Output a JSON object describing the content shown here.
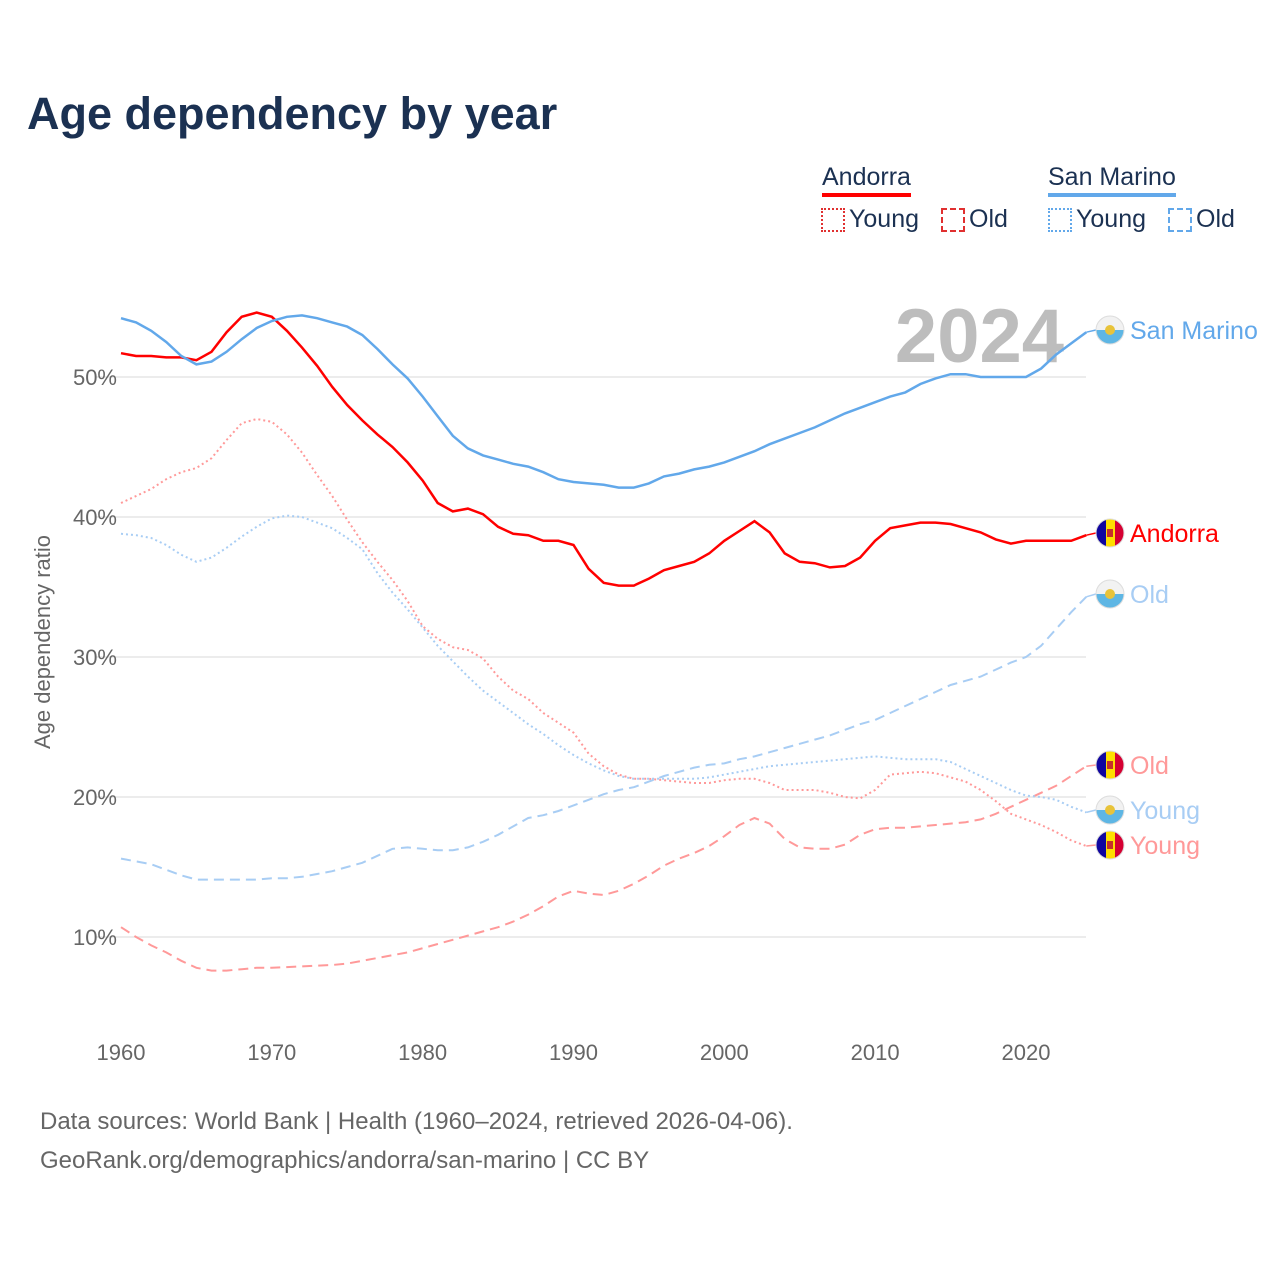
{
  "title": "Age dependency by year",
  "footer": {
    "line1": "Data sources: World Bank | Health (1960–2024, retrieved 2026-04-06).",
    "line2": "GeoRank.org/demographics/andorra/san-marino | CC BY"
  },
  "legend": {
    "andorra": {
      "label": "Andorra",
      "young": "Young",
      "old": "Old",
      "color": "#ff0000",
      "light": "#ff9999"
    },
    "san_marino": {
      "label": "San Marino",
      "young": "Young",
      "old": "Old",
      "color": "#62a8ea",
      "light": "#a8cdf4"
    }
  },
  "chart_data": {
    "type": "line",
    "title": "Age dependency by year",
    "ylabel": "Age dependency ratio",
    "xlabel": "",
    "year_watermark": "2024",
    "xlim": [
      1960,
      2024
    ],
    "ylim": [
      4,
      56
    ],
    "x_ticks": [
      "1960",
      "1970",
      "1980",
      "1990",
      "2000",
      "2010",
      "2020"
    ],
    "y_ticks": [
      {
        "v": 10,
        "label": "10%"
      },
      {
        "v": 20,
        "label": "20%"
      },
      {
        "v": 30,
        "label": "30%"
      },
      {
        "v": 40,
        "label": "40%"
      },
      {
        "v": 50,
        "label": "50%"
      }
    ],
    "x_start": 1960,
    "series": [
      {
        "name": "Andorra",
        "end_label": "Andorra",
        "country": "andorra",
        "style": "solid",
        "color": "#ff0000",
        "values": [
          51.7,
          51.5,
          51.5,
          51.4,
          51.4,
          51.2,
          51.8,
          53.2,
          54.3,
          54.6,
          54.3,
          53.3,
          52.1,
          50.8,
          49.3,
          48.0,
          46.9,
          45.9,
          45.0,
          43.9,
          42.6,
          41.0,
          40.4,
          40.6,
          40.2,
          39.3,
          38.8,
          38.7,
          38.3,
          38.3,
          38.0,
          36.3,
          35.3,
          35.1,
          35.1,
          35.6,
          36.2,
          36.5,
          36.8,
          37.4,
          38.3,
          39.0,
          39.7,
          38.9,
          37.4,
          36.8,
          36.7,
          36.4,
          36.5,
          37.1,
          38.3,
          39.2,
          39.4,
          39.6,
          39.6,
          39.5,
          39.2,
          38.9,
          38.4,
          38.1,
          38.3,
          38.3,
          38.3,
          38.3,
          38.7
        ]
      },
      {
        "name": "Andorra Young",
        "end_label": "Young",
        "country": "andorra",
        "style": "dotted",
        "color": "#ff9999",
        "values": [
          41.0,
          41.5,
          42.0,
          42.7,
          43.2,
          43.5,
          44.2,
          45.5,
          46.7,
          47.0,
          46.8,
          45.9,
          44.6,
          43.0,
          41.5,
          39.8,
          38.2,
          36.8,
          35.5,
          34.0,
          32.2,
          31.3,
          30.7,
          30.5,
          29.9,
          28.6,
          27.6,
          27.0,
          26.0,
          25.3,
          24.6,
          23.1,
          22.2,
          21.6,
          21.3,
          21.3,
          21.2,
          21.1,
          21.0,
          21.0,
          21.2,
          21.3,
          21.3,
          21.0,
          20.5,
          20.5,
          20.5,
          20.3,
          20.0,
          19.9,
          20.5,
          21.6,
          21.7,
          21.8,
          21.7,
          21.4,
          21.1,
          20.5,
          19.7,
          18.8,
          18.4,
          18.0,
          17.5,
          16.9,
          16.5
        ]
      },
      {
        "name": "Andorra Old",
        "end_label": "Old",
        "country": "andorra",
        "style": "dashed",
        "color": "#ff9999",
        "values": [
          10.7,
          10.0,
          9.4,
          8.9,
          8.3,
          7.8,
          7.6,
          7.6,
          7.7,
          7.8,
          7.8,
          7.85,
          7.9,
          7.95,
          8.0,
          8.1,
          8.3,
          8.5,
          8.7,
          8.9,
          9.2,
          9.5,
          9.8,
          10.1,
          10.4,
          10.7,
          11.1,
          11.6,
          12.2,
          12.9,
          13.3,
          13.1,
          13.0,
          13.3,
          13.8,
          14.4,
          15.1,
          15.6,
          16.0,
          16.5,
          17.2,
          18.0,
          18.5,
          18.1,
          17.0,
          16.4,
          16.3,
          16.3,
          16.6,
          17.3,
          17.7,
          17.8,
          17.8,
          17.9,
          18.0,
          18.1,
          18.2,
          18.4,
          18.8,
          19.3,
          19.8,
          20.3,
          20.8,
          21.5,
          22.2
        ]
      },
      {
        "name": "San Marino",
        "end_label": "San Marino",
        "country": "san_marino",
        "style": "solid",
        "color": "#62a8ea",
        "values": [
          54.2,
          53.9,
          53.3,
          52.5,
          51.5,
          50.9,
          51.1,
          51.8,
          52.7,
          53.5,
          54.0,
          54.3,
          54.4,
          54.2,
          53.9,
          53.6,
          53.0,
          52.0,
          50.9,
          49.9,
          48.6,
          47.2,
          45.8,
          44.9,
          44.4,
          44.1,
          43.8,
          43.6,
          43.2,
          42.7,
          42.5,
          42.4,
          42.3,
          42.1,
          42.1,
          42.4,
          42.9,
          43.1,
          43.4,
          43.6,
          43.9,
          44.3,
          44.7,
          45.2,
          45.6,
          46.0,
          46.4,
          46.9,
          47.4,
          47.8,
          48.2,
          48.6,
          48.9,
          49.5,
          49.9,
          50.2,
          50.2,
          50.0,
          50.0,
          50.0,
          50.0,
          50.6,
          51.6,
          52.4,
          53.2
        ]
      },
      {
        "name": "San Marino Young",
        "end_label": "Young",
        "country": "san_marino",
        "style": "dotted",
        "color": "#a8cdf4",
        "values": [
          38.8,
          38.7,
          38.5,
          38.0,
          37.3,
          36.8,
          37.1,
          37.8,
          38.6,
          39.3,
          39.9,
          40.1,
          40.0,
          39.6,
          39.2,
          38.5,
          37.7,
          36.0,
          34.6,
          33.4,
          32.1,
          30.8,
          29.7,
          28.6,
          27.6,
          26.8,
          26.0,
          25.2,
          24.5,
          23.7,
          23.0,
          22.4,
          21.9,
          21.5,
          21.3,
          21.3,
          21.3,
          21.3,
          21.3,
          21.4,
          21.6,
          21.8,
          22.0,
          22.2,
          22.3,
          22.4,
          22.5,
          22.6,
          22.7,
          22.8,
          22.9,
          22.8,
          22.7,
          22.7,
          22.7,
          22.5,
          22.0,
          21.5,
          21.0,
          20.5,
          20.1,
          20.0,
          19.8,
          19.3,
          18.9
        ]
      },
      {
        "name": "San Marino Old",
        "end_label": "Old",
        "country": "san_marino",
        "style": "dashed",
        "color": "#a8cdf4",
        "values": [
          15.6,
          15.4,
          15.2,
          14.8,
          14.4,
          14.1,
          14.1,
          14.1,
          14.1,
          14.1,
          14.2,
          14.2,
          14.3,
          14.5,
          14.7,
          15.0,
          15.3,
          15.8,
          16.3,
          16.4,
          16.3,
          16.2,
          16.2,
          16.4,
          16.8,
          17.3,
          17.9,
          18.5,
          18.7,
          19.0,
          19.4,
          19.8,
          20.2,
          20.5,
          20.7,
          21.1,
          21.5,
          21.8,
          22.1,
          22.3,
          22.4,
          22.7,
          22.9,
          23.2,
          23.5,
          23.8,
          24.1,
          24.4,
          24.8,
          25.2,
          25.5,
          26.0,
          26.5,
          27.0,
          27.5,
          28.0,
          28.3,
          28.6,
          29.1,
          29.6,
          30.0,
          30.8,
          32.0,
          33.2,
          34.3
        ]
      }
    ]
  }
}
